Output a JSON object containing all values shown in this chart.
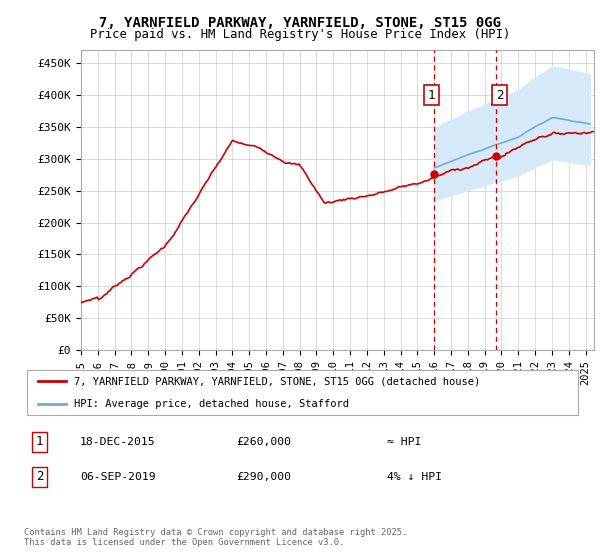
{
  "title_line1": "7, YARNFIELD PARKWAY, YARNFIELD, STONE, ST15 0GG",
  "title_line2": "Price paid vs. HM Land Registry's House Price Index (HPI)",
  "ylabel_ticks": [
    "£0",
    "£50K",
    "£100K",
    "£150K",
    "£200K",
    "£250K",
    "£300K",
    "£350K",
    "£400K",
    "£450K"
  ],
  "ytick_vals": [
    0,
    50000,
    100000,
    150000,
    200000,
    250000,
    300000,
    350000,
    400000,
    450000
  ],
  "ylim": [
    0,
    470000
  ],
  "xlim_start": 1995.0,
  "xlim_end": 2025.5,
  "background_color": "#ffffff",
  "grid_color": "#cccccc",
  "plot_bg_color": "#ffffff",
  "hpi_fill_color": "#d6e9f8",
  "hpi_line_color": "#6baed6",
  "price_line_color": "#cc0000",
  "annotation_box_color": "#ffffff",
  "annotation_box_edge": "#cc0000",
  "dashed_line_color": "#cc0000",
  "legend_label_price": "7, YARNFIELD PARKWAY, YARNFIELD, STONE, ST15 0GG (detached house)",
  "legend_label_hpi": "HPI: Average price, detached house, Stafford",
  "event1_label": "1",
  "event1_date": "18-DEC-2015",
  "event1_price": "£260,000",
  "event1_note": "≈ HPI",
  "event2_label": "2",
  "event2_date": "06-SEP-2019",
  "event2_price": "£290,000",
  "event2_note": "4% ↓ HPI",
  "footer": "Contains HM Land Registry data © Crown copyright and database right 2025.\nThis data is licensed under the Open Government Licence v3.0.",
  "hpi_band_x_start": 2016.0,
  "hpi_band_x_end": 2025.25,
  "event1_x": 2015.97,
  "event2_x": 2019.67,
  "xtick_years": [
    1995,
    1996,
    1997,
    1998,
    1999,
    2000,
    2001,
    2002,
    2003,
    2004,
    2005,
    2006,
    2007,
    2008,
    2009,
    2010,
    2011,
    2012,
    2013,
    2014,
    2015,
    2016,
    2017,
    2018,
    2019,
    2020,
    2021,
    2022,
    2023,
    2024,
    2025
  ]
}
